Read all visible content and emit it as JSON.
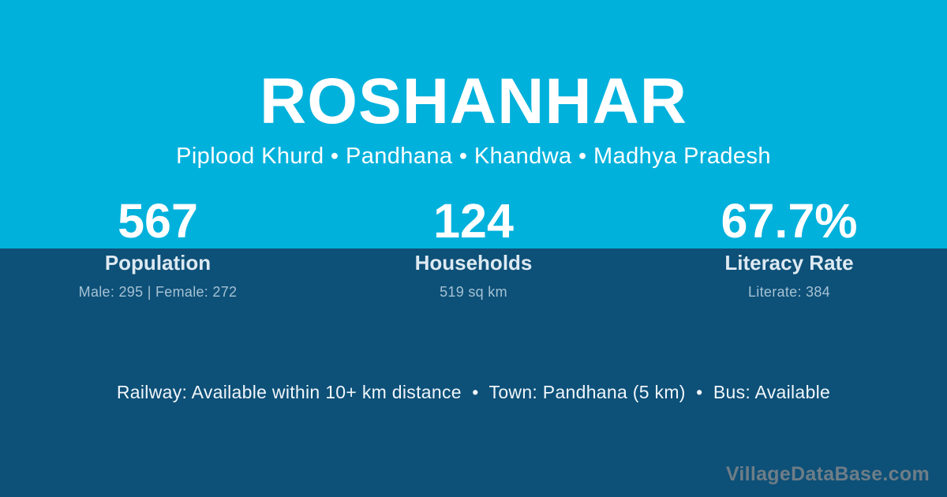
{
  "header": {
    "village_name": "ROSHANHAR",
    "breadcrumb": "Piplood Khurd • Pandhana • Khandwa • Madhya Pradesh"
  },
  "stats": [
    {
      "value": "567",
      "label": "Population",
      "detail": "Male: 295 | Female: 272"
    },
    {
      "value": "124",
      "label": "Households",
      "detail": "519 sq km"
    },
    {
      "value": "67.7%",
      "label": "Literacy Rate",
      "detail": "Literate: 384"
    }
  ],
  "footer": {
    "info": "Railway: Available within 10+ km distance  •  Town: Pandhana (5 km)  •  Bus: Available",
    "watermark": "VillageDataBase.com"
  },
  "colors": {
    "top_bg": "#00B1DC",
    "bottom_bg": "#0D5078",
    "accent_text": "#FFFFFF",
    "muted_text": "#A5C2D4",
    "watermark_text": "#6E7D87"
  }
}
